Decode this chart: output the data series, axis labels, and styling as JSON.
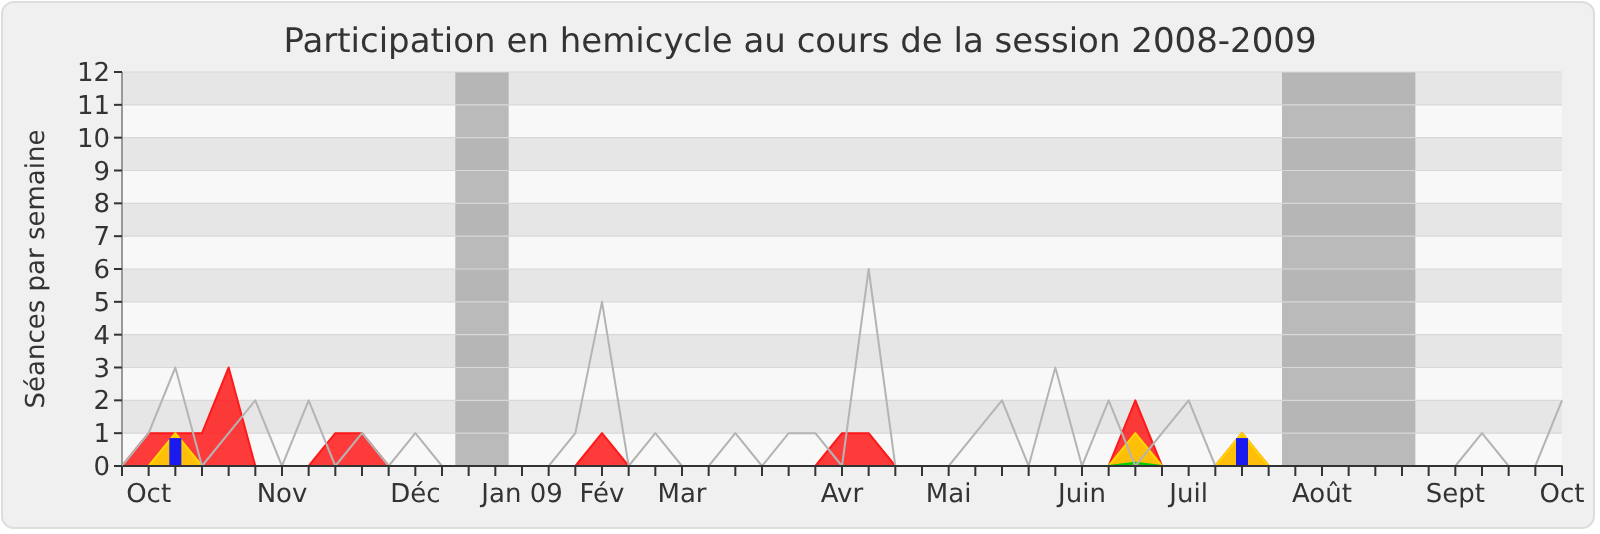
{
  "chart_data": {
    "type": "area",
    "title": "Participation en hemicycle au cours de la session 2008-2009",
    "ylabel": "Séances par semaine",
    "categories": [
      null,
      "Oct",
      null,
      null,
      null,
      null,
      "Nov",
      null,
      null,
      null,
      null,
      "Déc",
      null,
      null,
      null,
      "Jan 09",
      null,
      null,
      "Fév",
      null,
      null,
      "Mar",
      null,
      null,
      null,
      null,
      null,
      "Avr",
      null,
      null,
      null,
      "Mai",
      null,
      null,
      null,
      null,
      "Juin",
      null,
      null,
      null,
      "Juil",
      null,
      null,
      null,
      null,
      "Août",
      null,
      null,
      null,
      null,
      "Sept",
      null,
      null,
      null,
      "Oct"
    ],
    "ylim": [
      0,
      12
    ],
    "yticks": [
      0,
      1,
      2,
      3,
      4,
      5,
      6,
      7,
      8,
      9,
      10,
      11,
      12
    ],
    "grid": "y",
    "series": [
      {
        "type": "line",
        "color": "#b4b4b4",
        "values": [
          0,
          1,
          3,
          0,
          1,
          2,
          0,
          2,
          0,
          1,
          0,
          1,
          0,
          0,
          0,
          0,
          0,
          1,
          5,
          0,
          1,
          0,
          0,
          1,
          0,
          1,
          1,
          0,
          6,
          0,
          0,
          0,
          1,
          2,
          0,
          3,
          0,
          2,
          0,
          1,
          2,
          0,
          0,
          0,
          0,
          0,
          0,
          0,
          0,
          0,
          0,
          1,
          0,
          0,
          2
        ]
      },
      {
        "color": "#ff1a1a",
        "values": [
          0,
          1,
          1,
          1,
          3,
          0,
          0,
          0,
          1,
          1,
          0,
          0,
          0,
          0,
          0,
          0,
          0,
          0,
          1,
          0,
          0,
          0,
          0,
          0,
          0,
          0,
          0,
          1,
          1,
          0,
          0,
          0,
          0,
          0,
          0,
          0,
          0,
          0,
          2,
          0,
          0,
          0,
          1,
          0,
          0,
          0,
          0,
          0,
          0,
          0,
          0,
          0,
          0,
          0,
          0
        ]
      },
      {
        "color": "#ffd700",
        "values": [
          0,
          0,
          1,
          0,
          0,
          0,
          0,
          0,
          0,
          0,
          0,
          0,
          0,
          0,
          0,
          0,
          0,
          0,
          0,
          0,
          0,
          0,
          0,
          0,
          0,
          0,
          0,
          0,
          0,
          0,
          0,
          0,
          0,
          0,
          0,
          0,
          0,
          0,
          1,
          0,
          0,
          0,
          1,
          0,
          0,
          0,
          0,
          0,
          0,
          0,
          0,
          0,
          0,
          0,
          0
        ]
      },
      {
        "color": "#00cc00",
        "values": [
          0,
          0,
          0,
          0,
          0,
          0,
          0,
          0,
          0,
          0,
          0,
          0,
          0,
          0,
          0,
          0,
          0,
          0,
          0,
          0,
          0,
          0,
          0,
          0,
          0,
          0,
          0,
          0,
          0,
          0,
          0,
          0,
          0,
          0,
          0,
          0,
          0,
          0,
          0.1,
          0,
          0,
          0,
          0,
          0,
          0,
          0,
          0,
          0,
          0,
          0,
          0,
          0,
          0,
          0,
          0
        ]
      },
      {
        "type": "bar",
        "color": "#1a1aee",
        "values": [
          0,
          0,
          0.85,
          0,
          0,
          0,
          0,
          0,
          0,
          0,
          0,
          0,
          0,
          0,
          0,
          0,
          0,
          0,
          0,
          0,
          0,
          0,
          0,
          0,
          0,
          0,
          0,
          0,
          0,
          0,
          0,
          0,
          0,
          0,
          0,
          0,
          0,
          0,
          0,
          0,
          0,
          0,
          0.85,
          0,
          0,
          0,
          0,
          0,
          0,
          0,
          0,
          0,
          0,
          0,
          0
        ]
      }
    ]
  }
}
